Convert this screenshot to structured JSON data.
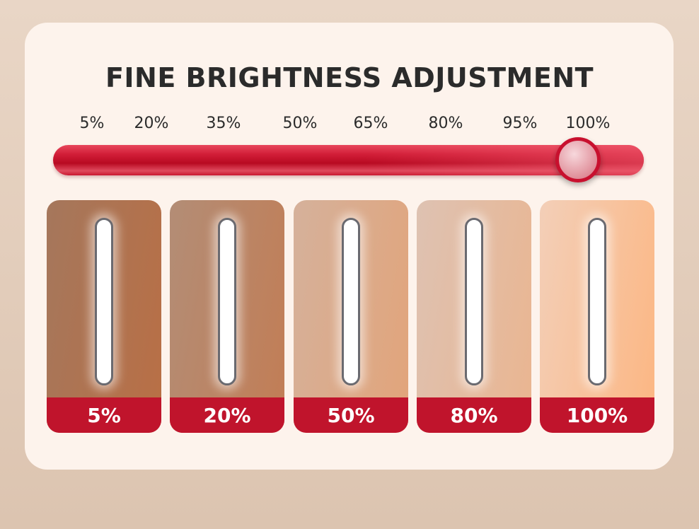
{
  "title": "FINE BRIGHTNESS ADJUSTMENT",
  "slider": {
    "ticks": [
      "5%",
      "20%",
      "35%",
      "50%",
      "65%",
      "80%",
      "95%",
      "100%"
    ],
    "value_percent": 100,
    "accent": "#c8102e"
  },
  "tiles": [
    {
      "label": "5%",
      "from": "#a5775c",
      "to": "#b96f45"
    },
    {
      "label": "20%",
      "from": "#b38d76",
      "to": "#c27d55"
    },
    {
      "label": "50%",
      "from": "#d5b19b",
      "to": "#e2a47a"
    },
    {
      "label": "80%",
      "from": "#dec2b2",
      "to": "#eab590"
    },
    {
      "label": "100%",
      "from": "#f3cfb8",
      "to": "#fcb682"
    }
  ]
}
